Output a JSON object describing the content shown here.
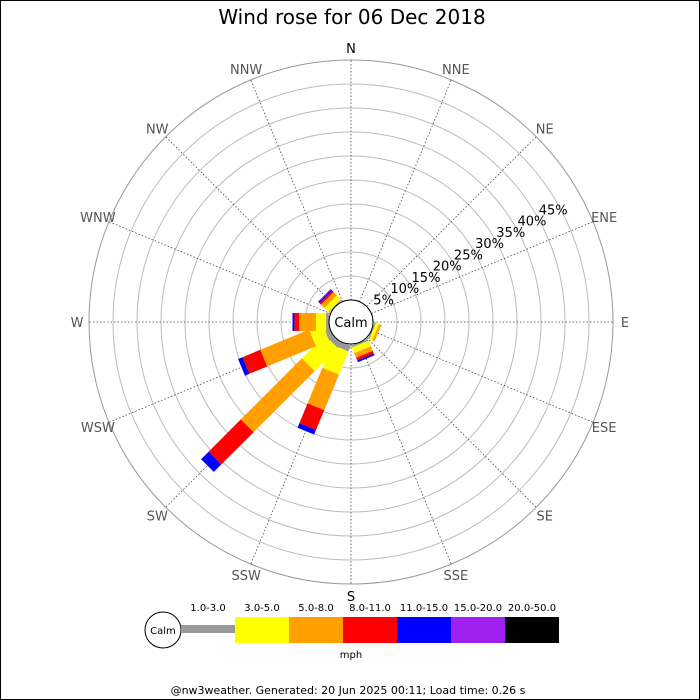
{
  "chart_data": {
    "type": "wind-rose",
    "title": "Wind rose for 06 Dec 2018",
    "directions": [
      "N",
      "NNE",
      "NE",
      "ENE",
      "E",
      "ESE",
      "SE",
      "SSE",
      "S",
      "SSW",
      "SW",
      "WSW",
      "W",
      "WNW",
      "NW",
      "NNW"
    ],
    "rings_percent": [
      5,
      10,
      15,
      20,
      25,
      30,
      35,
      40,
      45
    ],
    "ring_labels": [
      "5%",
      "10%",
      "15%",
      "20%",
      "25%",
      "30%",
      "35%",
      "40%",
      "45%"
    ],
    "rmax_percent": 50,
    "center_label": "Calm",
    "unit_label": "mph",
    "speed_bins": [
      {
        "label": "1.0-3.0",
        "color": "#999999"
      },
      {
        "label": "3.0-5.0",
        "color": "#ffff00"
      },
      {
        "label": "5.0-8.0",
        "color": "#ffa000"
      },
      {
        "label": "8.0-11.0",
        "color": "#ff0000"
      },
      {
        "label": "11.0-15.0",
        "color": "#0000ff"
      },
      {
        "label": "15.0-20.0",
        "color": "#a020f0"
      },
      {
        "label": "20.0-50.0",
        "color": "#000000"
      }
    ],
    "series": [
      {
        "direction": "N",
        "values": [
          0,
          0,
          0,
          0,
          0,
          0,
          0
        ]
      },
      {
        "direction": "NNE",
        "values": [
          0,
          0,
          0,
          0,
          0,
          0,
          0
        ]
      },
      {
        "direction": "NE",
        "values": [
          0,
          0,
          0,
          0,
          0,
          0,
          0
        ]
      },
      {
        "direction": "ENE",
        "values": [
          0,
          0,
          0,
          0,
          0,
          0,
          0
        ]
      },
      {
        "direction": "E",
        "values": [
          0,
          0,
          0,
          0,
          0,
          0,
          0
        ]
      },
      {
        "direction": "ESE",
        "values": [
          0.3,
          0.7,
          0.5,
          0,
          0,
          0,
          0
        ]
      },
      {
        "direction": "SE",
        "values": [
          0,
          0,
          0,
          0,
          0,
          0,
          0
        ]
      },
      {
        "direction": "SSE",
        "values": [
          0.4,
          1.3,
          1.0,
          0.6,
          0.4,
          0,
          0
        ]
      },
      {
        "direction": "S",
        "values": [
          0,
          0,
          0,
          0,
          0,
          0,
          0
        ]
      },
      {
        "direction": "SSW",
        "values": [
          1.3,
          5.2,
          8.0,
          4.5,
          1.0,
          0,
          0
        ]
      },
      {
        "direction": "SW",
        "values": [
          1.2,
          6.8,
          18.0,
          9.5,
          2.2,
          0,
          0
        ]
      },
      {
        "direction": "WSW",
        "values": [
          1.1,
          3.0,
          11.0,
          4.0,
          1.0,
          0,
          0
        ]
      },
      {
        "direction": "W",
        "values": [
          0.6,
          2.1,
          3.5,
          1.0,
          0.4,
          0,
          0
        ]
      },
      {
        "direction": "WNW",
        "values": [
          0,
          0,
          0,
          0,
          0,
          0,
          0
        ]
      },
      {
        "direction": "NW",
        "values": [
          0.2,
          1.2,
          1.0,
          0.4,
          0.3,
          0.2,
          0
        ]
      },
      {
        "direction": "NNW",
        "values": [
          0,
          0,
          0,
          0,
          0,
          0,
          0
        ]
      }
    ]
  },
  "footer": "@nw3weather. Generated: 20 Jun 2025 00:11; Load time: 0.26 s"
}
